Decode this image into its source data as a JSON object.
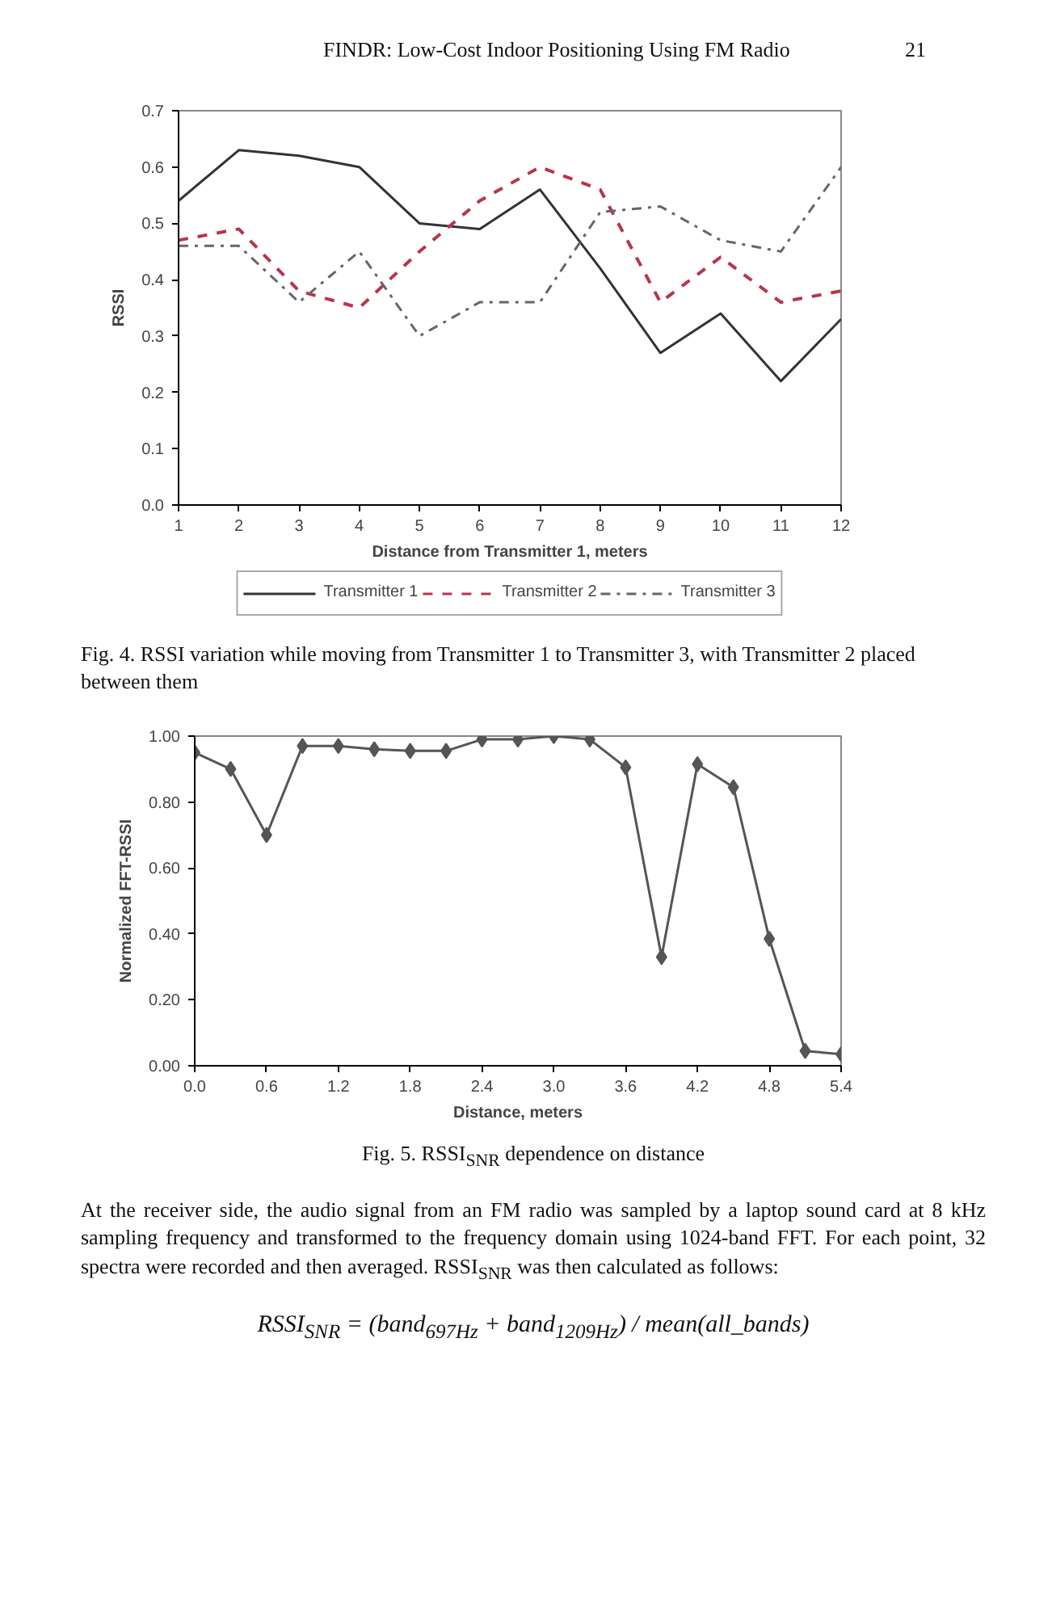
{
  "chart_data": [
    {
      "type": "line",
      "xlabel": "Distance from Transmitter 1, meters",
      "ylabel": "RSSI",
      "x": [
        1,
        2,
        3,
        4,
        5,
        6,
        7,
        8,
        9,
        10,
        11,
        12
      ],
      "series": [
        {
          "name": "Transmitter 1",
          "color": "#333333",
          "line_style": "solid",
          "values": [
            0.54,
            0.63,
            0.62,
            0.6,
            0.5,
            0.49,
            0.56,
            0.42,
            0.27,
            0.34,
            0.22,
            0.33
          ]
        },
        {
          "name": "Transmitter 2",
          "color": "#b8344c",
          "line_style": "dashed",
          "values": [
            0.47,
            0.49,
            0.38,
            0.35,
            0.45,
            0.54,
            0.6,
            0.56,
            0.36,
            0.44,
            0.36,
            0.38
          ]
        },
        {
          "name": "Transmitter 3",
          "color": "#666666",
          "line_style": "dashdot",
          "values": [
            0.46,
            0.46,
            0.36,
            0.45,
            0.3,
            0.36,
            0.36,
            0.52,
            0.53,
            0.47,
            0.45,
            0.6
          ]
        }
      ],
      "xlim": [
        1,
        12
      ],
      "xticks": [
        1,
        2,
        3,
        4,
        5,
        6,
        7,
        8,
        9,
        10,
        11,
        12
      ],
      "ylim": [
        0,
        0.7
      ],
      "yticks": [
        {
          "value": 0,
          "label": "0.0"
        },
        {
          "value": 0.1,
          "label": "0.1"
        },
        {
          "value": 0.2,
          "label": "0.2"
        },
        {
          "value": 0.3,
          "label": "0.3"
        },
        {
          "value": 0.4,
          "label": "0.4"
        },
        {
          "value": 0.5,
          "label": "0.5"
        },
        {
          "value": 0.6,
          "label": "0.6"
        },
        {
          "value": 0.7,
          "label": "0.7"
        }
      ],
      "grid": false,
      "legend": "bottom",
      "annotations": [
        "FINDR: Low-Cost Indoor Positioning Using FM Radio",
        "21",
        "Fig. 4. RSSI variation while moving from Transmitter 1 to Transmitter 3, with Transmitter 2 placed between them"
      ]
    },
    {
      "type": "line",
      "xlabel": "Distance, meters",
      "ylabel": "Normalized FFT-RSSI",
      "marker": "diamond",
      "x": [
        0,
        0.3,
        0.6,
        0.9,
        1.2,
        1.5,
        1.8,
        2.1,
        2.4,
        2.7,
        3.0,
        3.3,
        3.6,
        3.9,
        4.2,
        4.5,
        4.8,
        5.1,
        5.4
      ],
      "series": [
        {
          "color": "#555555",
          "values": [
            0.95,
            0.9,
            0.7,
            0.97,
            0.97,
            0.96,
            0.955,
            0.955,
            0.99,
            0.99,
            1.0,
            0.99,
            0.905,
            0.33,
            0.915,
            0.845,
            0.385,
            0.045,
            0.035
          ]
        }
      ],
      "xlim": [
        0,
        5.4
      ],
      "xticks": [
        {
          "value": 0,
          "label": "0.0"
        },
        {
          "value": 0.6,
          "label": "0.6"
        },
        {
          "value": 1.2,
          "label": "1.2"
        },
        {
          "value": 1.8,
          "label": "1.8"
        },
        {
          "value": 2.4,
          "label": "2.4"
        },
        {
          "value": 3.0,
          "label": "3.0"
        },
        {
          "value": 3.6,
          "label": "3.6"
        },
        {
          "value": 4.2,
          "label": "4.2"
        },
        {
          "value": 4.8,
          "label": "4.8"
        },
        {
          "value": 5.4,
          "label": "5.4"
        }
      ],
      "ylim": [
        0,
        1
      ],
      "yticks": [
        {
          "value": 0,
          "label": "0.00"
        },
        {
          "value": 0.2,
          "label": "0.20"
        },
        {
          "value": 0.4,
          "label": "0.40"
        },
        {
          "value": 0.6,
          "label": "0.60"
        },
        {
          "value": 0.8,
          "label": "0.80"
        },
        {
          "value": 1,
          "label": "1.00"
        }
      ],
      "grid": false,
      "annotations": [
        "Fig. 5. RSSI$_{SNR}$ dependence on distance",
        "At the receiver side, the audio signal from an FM radio was sampled by a laptop sound card at 8 kHz sampling frequency and transformed to the frequency domain using 1024-band FFT. For each point, 32 spectra were recorded and then averaged. RSSI$_{SNR}$ was then calculated as follows:",
        "RSSI$_{SNR}$ = (band$_{697Hz}$ + band$_{1209Hz}$) / mean(all_bands)"
      ]
    }
  ]
}
